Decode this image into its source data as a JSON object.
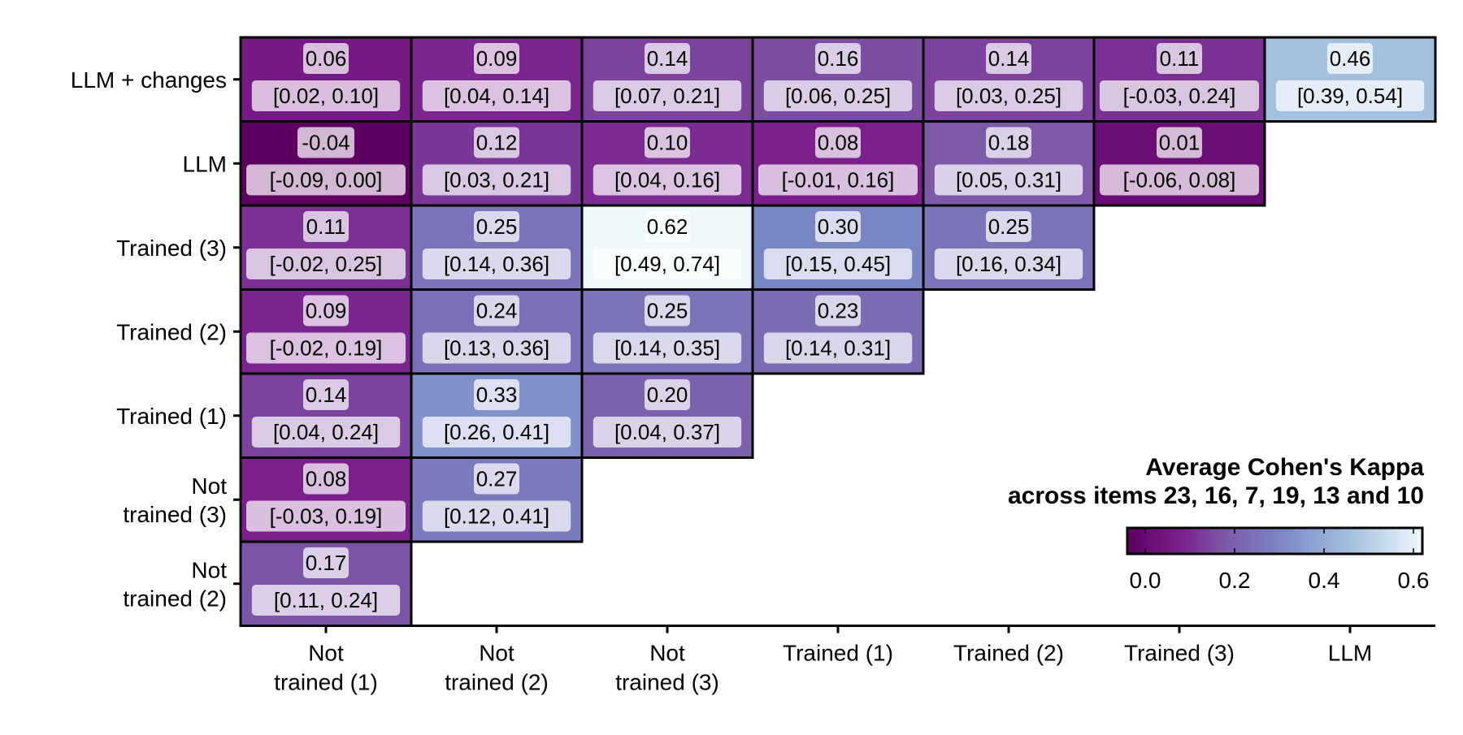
{
  "chart_data": {
    "type": "heatmap",
    "x_categories": [
      "Not\ntrained (1)",
      "Not\ntrained (2)",
      "Not\ntrained (3)",
      "Trained (1)",
      "Trained (2)",
      "Trained (3)",
      "LLM"
    ],
    "y_categories": [
      "LLM + changes",
      "LLM",
      "Trained (3)",
      "Trained (2)",
      "Trained (1)",
      "Not\ntrained (3)",
      "Not\ntrained (2)"
    ],
    "cells": [
      {
        "row": 0,
        "col": 0,
        "value": 0.06,
        "value_label": "0.06",
        "ci_label": "[0.02, 0.10]"
      },
      {
        "row": 0,
        "col": 1,
        "value": 0.09,
        "value_label": "0.09",
        "ci_label": "[0.04, 0.14]"
      },
      {
        "row": 0,
        "col": 2,
        "value": 0.14,
        "value_label": "0.14",
        "ci_label": "[0.07, 0.21]"
      },
      {
        "row": 0,
        "col": 3,
        "value": 0.16,
        "value_label": "0.16",
        "ci_label": "[0.06, 0.25]"
      },
      {
        "row": 0,
        "col": 4,
        "value": 0.14,
        "value_label": "0.14",
        "ci_label": "[0.03, 0.25]"
      },
      {
        "row": 0,
        "col": 5,
        "value": 0.11,
        "value_label": "0.11",
        "ci_label": "[-0.03, 0.24]"
      },
      {
        "row": 0,
        "col": 6,
        "value": 0.46,
        "value_label": "0.46",
        "ci_label": "[0.39, 0.54]"
      },
      {
        "row": 1,
        "col": 0,
        "value": -0.04,
        "value_label": "-0.04",
        "ci_label": "[-0.09, 0.00]"
      },
      {
        "row": 1,
        "col": 1,
        "value": 0.12,
        "value_label": "0.12",
        "ci_label": "[0.03, 0.21]"
      },
      {
        "row": 1,
        "col": 2,
        "value": 0.1,
        "value_label": "0.10",
        "ci_label": "[0.04, 0.16]"
      },
      {
        "row": 1,
        "col": 3,
        "value": 0.08,
        "value_label": "0.08",
        "ci_label": "[-0.01, 0.16]"
      },
      {
        "row": 1,
        "col": 4,
        "value": 0.18,
        "value_label": "0.18",
        "ci_label": "[0.05, 0.31]"
      },
      {
        "row": 1,
        "col": 5,
        "value": 0.01,
        "value_label": "0.01",
        "ci_label": "[-0.06, 0.08]"
      },
      {
        "row": 2,
        "col": 0,
        "value": 0.11,
        "value_label": "0.11",
        "ci_label": "[-0.02, 0.25]"
      },
      {
        "row": 2,
        "col": 1,
        "value": 0.25,
        "value_label": "0.25",
        "ci_label": "[0.14, 0.36]"
      },
      {
        "row": 2,
        "col": 2,
        "value": 0.62,
        "value_label": "0.62",
        "ci_label": "[0.49, 0.74]"
      },
      {
        "row": 2,
        "col": 3,
        "value": 0.3,
        "value_label": "0.30",
        "ci_label": "[0.15, 0.45]"
      },
      {
        "row": 2,
        "col": 4,
        "value": 0.25,
        "value_label": "0.25",
        "ci_label": "[0.16, 0.34]"
      },
      {
        "row": 3,
        "col": 0,
        "value": 0.09,
        "value_label": "0.09",
        "ci_label": "[-0.02, 0.19]"
      },
      {
        "row": 3,
        "col": 1,
        "value": 0.24,
        "value_label": "0.24",
        "ci_label": "[0.13, 0.36]"
      },
      {
        "row": 3,
        "col": 2,
        "value": 0.25,
        "value_label": "0.25",
        "ci_label": "[0.14, 0.35]"
      },
      {
        "row": 3,
        "col": 3,
        "value": 0.23,
        "value_label": "0.23",
        "ci_label": "[0.14, 0.31]"
      },
      {
        "row": 4,
        "col": 0,
        "value": 0.14,
        "value_label": "0.14",
        "ci_label": "[0.04, 0.24]"
      },
      {
        "row": 4,
        "col": 1,
        "value": 0.33,
        "value_label": "0.33",
        "ci_label": "[0.26, 0.41]"
      },
      {
        "row": 4,
        "col": 2,
        "value": 0.2,
        "value_label": "0.20",
        "ci_label": "[0.04, 0.37]"
      },
      {
        "row": 5,
        "col": 0,
        "value": 0.08,
        "value_label": "0.08",
        "ci_label": "[-0.03, 0.19]"
      },
      {
        "row": 5,
        "col": 1,
        "value": 0.27,
        "value_label": "0.27",
        "ci_label": "[0.12, 0.41]"
      },
      {
        "row": 6,
        "col": 0,
        "value": 0.17,
        "value_label": "0.17",
        "ci_label": "[0.11, 0.24]"
      }
    ],
    "legend": {
      "title_line1": "Average Cohen's Kappa",
      "title_line2": "across items 23, 16, 7, 19, 13 and 10",
      "placement": "bottom-right",
      "ticks": [
        0.0,
        0.2,
        0.4,
        0.6
      ],
      "tick_labels": [
        "0.0",
        "0.2",
        "0.4",
        "0.6"
      ],
      "range": [
        -0.04,
        0.62
      ]
    },
    "color_scale": {
      "stops": [
        {
          "value": -0.04,
          "color": "#5e0062"
        },
        {
          "value": 0.08,
          "color": "#7b1f8c"
        },
        {
          "value": 0.18,
          "color": "#7c5aa8"
        },
        {
          "value": 0.3,
          "color": "#7a86c3"
        },
        {
          "value": 0.46,
          "color": "#a3c0df"
        },
        {
          "value": 0.62,
          "color": "#eef8fb"
        }
      ]
    },
    "grid": false
  }
}
